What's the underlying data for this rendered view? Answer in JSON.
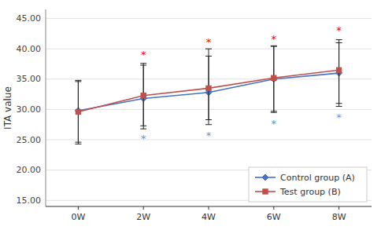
{
  "chart_data": {
    "type": "line",
    "categories": [
      "0W",
      "2W",
      "4W",
      "6W",
      "8W"
    ],
    "series": [
      {
        "name": "Control group (A)",
        "color": "#4472C4",
        "marker": "diamond",
        "values": [
          29.8,
          31.8,
          32.8,
          35.0,
          36.0
        ],
        "error_upper": [
          5.0,
          5.5,
          6.0,
          5.5,
          5.0
        ],
        "error_lower": [
          5.5,
          5.0,
          4.5,
          5.5,
          5.5
        ]
      },
      {
        "name": "Test group (B)",
        "color": "#C0504D",
        "marker": "square",
        "values": [
          29.6,
          32.3,
          33.5,
          35.2,
          36.5
        ],
        "error_upper": [
          5.0,
          5.3,
          6.5,
          5.2,
          5.0
        ],
        "error_lower": [
          5.0,
          5.0,
          6.0,
          5.5,
          5.5
        ]
      }
    ],
    "ylabel": "ITA value",
    "ylim": [
      14.0,
      46.5
    ],
    "yticks": [
      {
        "value": 15.0,
        "label": "15.00"
      },
      {
        "value": 20.0,
        "label": "20.00"
      },
      {
        "value": 25.0,
        "label": "25.00"
      },
      {
        "value": 30.0,
        "label": "30.00"
      },
      {
        "value": 35.0,
        "label": "35.00"
      },
      {
        "value": 40.0,
        "label": "40.00"
      },
      {
        "value": 45.0,
        "label": "45.00"
      }
    ],
    "grid": true,
    "legend": "lower right",
    "annotations": [
      {
        "text": "*",
        "x": "2W",
        "y": 38.5,
        "color": "#FF0000",
        "series": 1
      },
      {
        "text": "*",
        "x": "4W",
        "y": 40.5,
        "color": "#FF0000",
        "series": 1
      },
      {
        "text": "*",
        "x": "6W",
        "y": 41.0,
        "color": "#FF0000",
        "series": 1
      },
      {
        "text": "*",
        "x": "8W",
        "y": 42.5,
        "color": "#FF0000",
        "series": 1
      },
      {
        "text": "*",
        "x": "2W",
        "y": 26.0,
        "color": "#5B9BD5",
        "series": 0
      },
      {
        "text": "*",
        "x": "4W",
        "y": 26.5,
        "color": "#5B9BD5",
        "series": 0
      },
      {
        "text": "*",
        "x": "6W",
        "y": 28.5,
        "color": "#5B9BD5",
        "series": 0
      },
      {
        "text": "*",
        "x": "8W",
        "y": 29.5,
        "color": "#5B9BD5",
        "series": 0
      }
    ]
  }
}
